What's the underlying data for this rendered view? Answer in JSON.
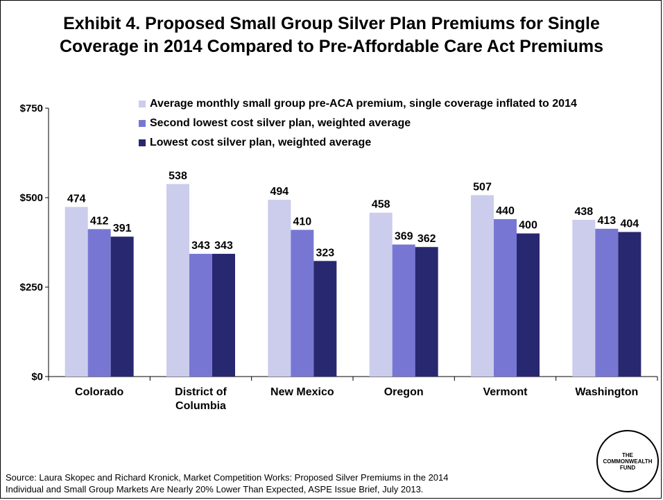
{
  "title": {
    "line1": "Exhibit 4. Proposed Small Group Silver Plan Premiums for Single",
    "line2": "Coverage in 2014 Compared to Pre-Affordable Care Act Premiums"
  },
  "source": {
    "line1": "Source: Laura Skopec and Richard Kronick, Market Competition Works: Proposed Silver Premiums in the 2014",
    "line2": "Individual and Small Group Markets Are Nearly 20% Lower Than Expected, ASPE Issue Brief, July 2013."
  },
  "logo": {
    "line1": "THE",
    "line2": "COMMONWEALTH",
    "line3": "FUND"
  },
  "chart_data": {
    "type": "bar",
    "categories": [
      [
        "Colorado"
      ],
      [
        "District of",
        "Columbia"
      ],
      [
        "New Mexico"
      ],
      [
        "Oregon"
      ],
      [
        "Vermont"
      ],
      [
        "Washington"
      ]
    ],
    "series": [
      {
        "name": "Average monthly small group pre-ACA premium, single coverage inflated to 2014",
        "color": "#cccced",
        "values": [
          474,
          538,
          494,
          458,
          507,
          438
        ]
      },
      {
        "name": "Second lowest cost silver plan, weighted average",
        "color": "#7777d3",
        "values": [
          412,
          343,
          410,
          369,
          440,
          413
        ]
      },
      {
        "name": "Lowest cost silver plan, weighted average",
        "color": "#282870",
        "values": [
          391,
          343,
          323,
          362,
          400,
          404
        ]
      }
    ],
    "ylim": [
      0,
      750
    ],
    "yticks": [
      0,
      250,
      500,
      750
    ],
    "ytick_labels": [
      "$0",
      "$250",
      "$500",
      "$750"
    ],
    "grid": false,
    "legend": "top-right",
    "data_labels": true
  }
}
